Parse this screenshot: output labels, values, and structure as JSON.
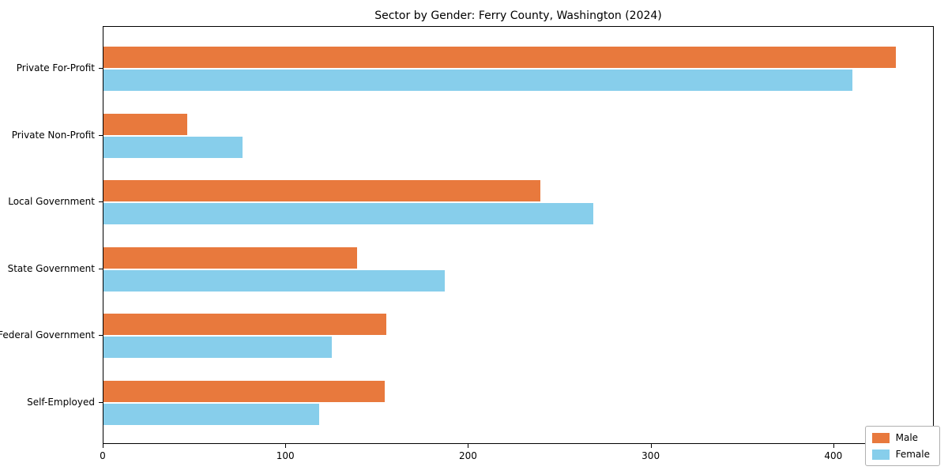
{
  "chart_data": {
    "type": "bar",
    "orientation": "horizontal",
    "title": "Sector by Gender: Ferry County, Washington (2024)",
    "categories": [
      "Private For-Profit",
      "Private Non-Profit",
      "Local Government",
      "State Government",
      "Federal Government",
      "Self-Employed"
    ],
    "series": [
      {
        "name": "Male",
        "color": "#e8793d",
        "values": [
          434,
          46,
          239,
          139,
          155,
          154
        ]
      },
      {
        "name": "Female",
        "color": "#87ceeb",
        "values": [
          410,
          76,
          268,
          187,
          125,
          118
        ]
      }
    ],
    "xlabel": "",
    "ylabel": "",
    "xlim": [
      0,
      455
    ],
    "x_ticks": [
      0,
      100,
      200,
      300,
      400
    ],
    "legend_position": "lower right",
    "grid": false
  }
}
